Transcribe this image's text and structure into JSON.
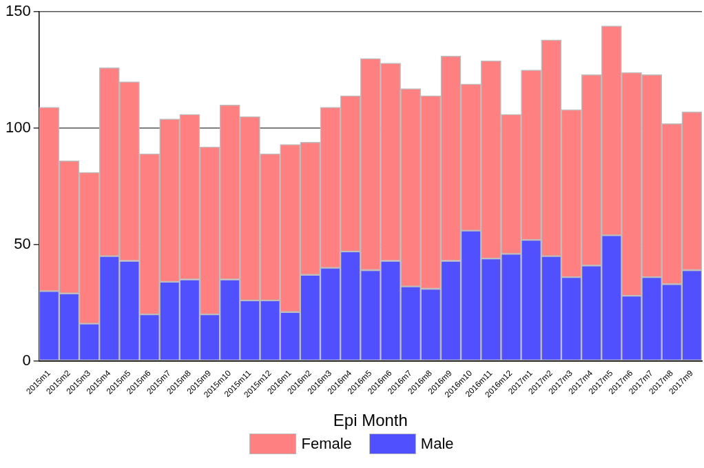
{
  "chart_data": {
    "type": "bar",
    "stacked": true,
    "xlabel": "Epi Month",
    "categories": [
      "2015m1",
      "2015m2",
      "2015m3",
      "2015m4",
      "2015m5",
      "2015m6",
      "2015m7",
      "2015m8",
      "2015m9",
      "2015m10",
      "2015m11",
      "2015m12",
      "2016m1",
      "2016m2",
      "2016m3",
      "2016m4",
      "2016m5",
      "2016m6",
      "2016m7",
      "2016m8",
      "2016m9",
      "2016m10",
      "2016m11",
      "2016m12",
      "2017m1",
      "2017m2",
      "2017m3",
      "2017m4",
      "2017m5",
      "2017m6",
      "2017m7",
      "2017m8",
      "2017m9"
    ],
    "series": [
      {
        "name": "Male",
        "color": "#5050ff",
        "values": [
          30,
          29,
          16,
          45,
          43,
          20,
          34,
          35,
          20,
          35,
          26,
          26,
          21,
          37,
          40,
          47,
          39,
          43,
          32,
          31,
          43,
          56,
          44,
          46,
          52,
          45,
          36,
          41,
          54,
          28,
          36,
          33,
          39
        ]
      },
      {
        "name": "Female",
        "color": "#ff8080",
        "values": [
          79,
          57,
          65,
          81,
          77,
          69,
          70,
          71,
          72,
          75,
          79,
          63,
          72,
          57,
          69,
          67,
          91,
          85,
          85,
          83,
          88,
          63,
          85,
          60,
          73,
          93,
          72,
          82,
          90,
          96,
          87,
          69,
          68
        ]
      }
    ],
    "ylim": [
      0,
      150
    ],
    "yticks": [
      0,
      50,
      100,
      150
    ],
    "grid": "y",
    "legend": "bottom"
  }
}
